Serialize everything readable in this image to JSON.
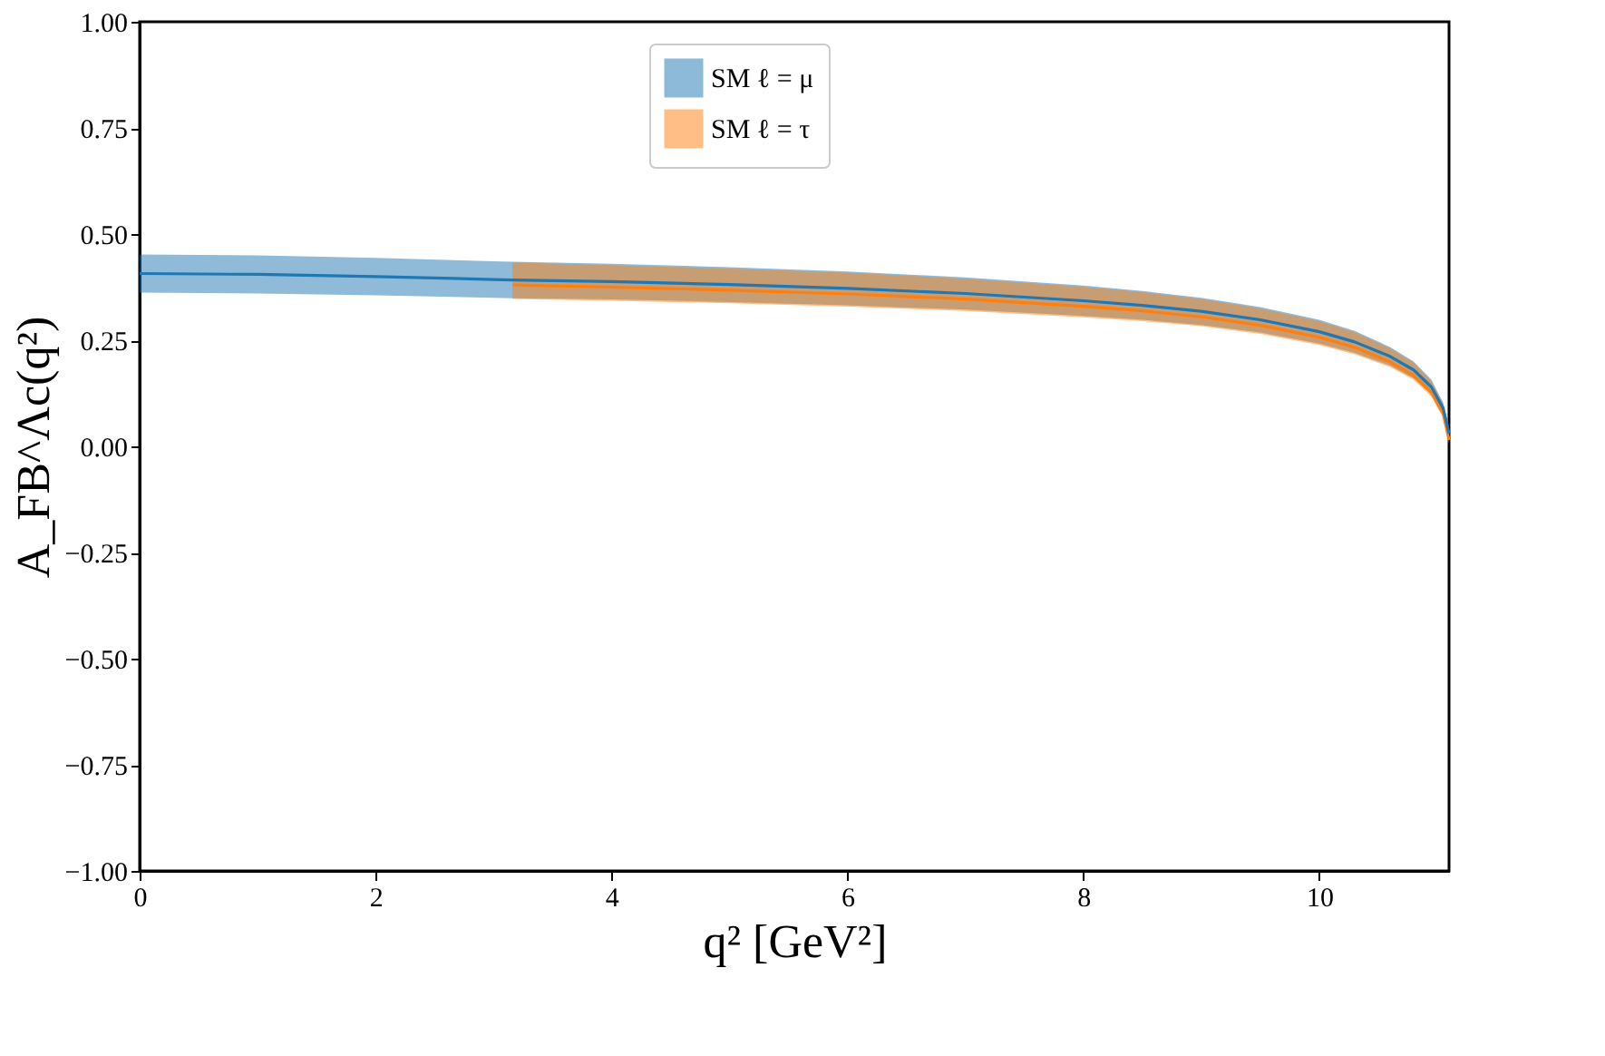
{
  "chart_data": {
    "type": "line",
    "xlabel": "q² [GeV²]",
    "ylabel": "A_FB^Λc(q²)",
    "xlim": [
      0,
      11.1
    ],
    "xticks": [
      0,
      2,
      4,
      6,
      8,
      10
    ],
    "ylim": [
      -1,
      1
    ],
    "yticks": [
      {
        "value": -1,
        "label": "−1.00"
      },
      {
        "value": -0.75,
        "label": "−0.75"
      },
      {
        "value": -0.5,
        "label": "−0.50"
      },
      {
        "value": -0.25,
        "label": "−0.25"
      },
      {
        "value": 0,
        "label": "0.00"
      },
      {
        "value": 0.25,
        "label": "0.25"
      },
      {
        "value": 0.5,
        "label": "0.50"
      },
      {
        "value": 0.75,
        "label": "0.75"
      },
      {
        "value": 1,
        "label": "1.00"
      }
    ],
    "grid": false,
    "legend": "top",
    "series": [
      {
        "name": "SM ℓ = μ",
        "color": "#1f77b4",
        "x": [
          0,
          1,
          2,
          3,
          3.16,
          4,
          5,
          6,
          7,
          8,
          8.5,
          9,
          9.5,
          10,
          10.3,
          10.6,
          10.8,
          10.95,
          11.05,
          11.1
        ],
        "values": [
          0.407,
          0.405,
          0.4,
          0.393,
          0.392,
          0.388,
          0.381,
          0.372,
          0.36,
          0.343,
          0.332,
          0.318,
          0.298,
          0.27,
          0.246,
          0.212,
          0.18,
          0.14,
          0.09,
          0.03
        ],
        "lower": [
          0.362,
          0.36,
          0.356,
          0.35,
          0.349,
          0.346,
          0.34,
          0.332,
          0.322,
          0.307,
          0.298,
          0.286,
          0.268,
          0.242,
          0.22,
          0.19,
          0.16,
          0.123,
          0.077,
          0.018
        ],
        "upper": [
          0.452,
          0.45,
          0.444,
          0.436,
          0.435,
          0.43,
          0.422,
          0.412,
          0.398,
          0.379,
          0.366,
          0.35,
          0.328,
          0.298,
          0.272,
          0.234,
          0.2,
          0.157,
          0.103,
          0.042
        ]
      },
      {
        "name": "SM ℓ = τ",
        "color": "#ff7f0e",
        "x": [
          3.16,
          4,
          5,
          6,
          7,
          8,
          8.5,
          9,
          9.5,
          10,
          10.3,
          10.6,
          10.8,
          10.95,
          11.05,
          11.1
        ],
        "values": [
          0.38,
          0.375,
          0.368,
          0.359,
          0.347,
          0.33,
          0.319,
          0.305,
          0.285,
          0.257,
          0.233,
          0.199,
          0.167,
          0.127,
          0.077,
          0.015
        ],
        "lower": [
          0.347,
          0.343,
          0.337,
          0.329,
          0.319,
          0.304,
          0.295,
          0.283,
          0.265,
          0.239,
          0.217,
          0.187,
          0.157,
          0.117,
          0.068,
          0.005
        ],
        "upper": [
          0.433,
          0.427,
          0.419,
          0.409,
          0.395,
          0.376,
          0.363,
          0.347,
          0.325,
          0.295,
          0.269,
          0.231,
          0.197,
          0.154,
          0.1,
          0.04
        ]
      }
    ]
  }
}
